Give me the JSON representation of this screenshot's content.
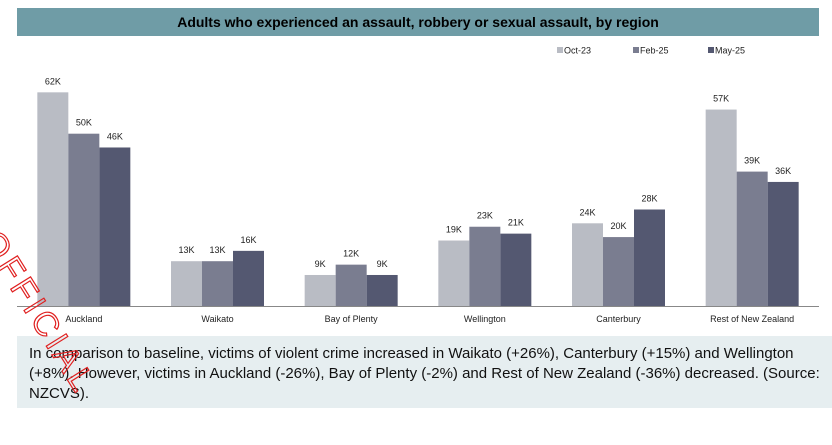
{
  "title": "Adults who experienced an assault, robbery or sexual assault, by region",
  "commentary": "In comparison to baseline, victims of violent crime increased in Waikato (+26%), Canterbury (+15%) and Wellington (+8%). However, victims in Auckland (-26%), Bay of Plenty (-2%) and Rest of New Zealand (-36%) decreased. (Source: NZCVS).",
  "stamp_text": "OFFICIAL",
  "colors": {
    "title_bg": "#6f9ca6",
    "stamp": "#e02020"
  },
  "chart_data": {
    "type": "bar",
    "title": "Adults who experienced an assault, robbery or sexual assault, by region",
    "xlabel": "",
    "ylabel": "",
    "ylim": [
      0,
      65000
    ],
    "grid": false,
    "legend_position": "top-right",
    "categories": [
      "Auckland",
      "Waikato",
      "Bay of Plenty",
      "Wellington",
      "Canterbury",
      "Rest of New Zealand"
    ],
    "series": [
      {
        "name": "Oct-23",
        "color": "#b9bcc4",
        "values": [
          62000,
          13000,
          9000,
          19000,
          24000,
          57000
        ],
        "labels": [
          "62K",
          "13K",
          "9K",
          "19K",
          "24K",
          "57K"
        ]
      },
      {
        "name": "Feb-25",
        "color": "#7a7d90",
        "values": [
          50000,
          13000,
          12000,
          23000,
          20000,
          39000
        ],
        "labels": [
          "50K",
          "13K",
          "12K",
          "23K",
          "20K",
          "39K"
        ]
      },
      {
        "name": "May-25",
        "color": "#545871",
        "values": [
          46000,
          16000,
          9000,
          21000,
          28000,
          36000
        ],
        "labels": [
          "46K",
          "16K",
          "9K",
          "21K",
          "28K",
          "36K"
        ]
      }
    ]
  }
}
